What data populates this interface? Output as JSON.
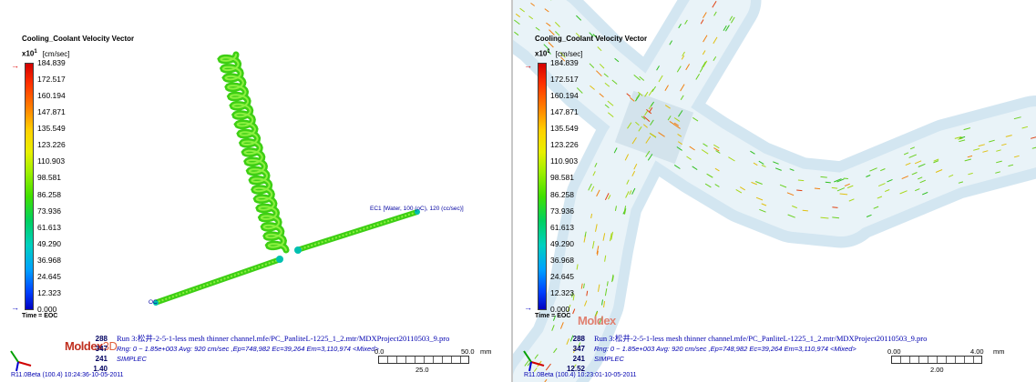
{
  "left": {
    "legend": {
      "title": "Cooling_Coolant Velocity Vector",
      "scale_prefix": "x10",
      "scale_exp": "1",
      "unit": "[cm/sec]",
      "ticks": [
        "184.839",
        "172.517",
        "160.194",
        "147.871",
        "135.549",
        "123.226",
        "110.903",
        "98.581",
        "86.258",
        "73.936",
        "61.613",
        "49.290",
        "36.968",
        "24.645",
        "12.323",
        "0.000"
      ],
      "time": "Time = EOC"
    },
    "inlet_label": "EC1 [Water, 100 (oC), 120 (cc/sec)]",
    "outlet_label": "OC",
    "brand": "Moldex",
    "brand_suffix": "3D",
    "info": {
      "rows": [
        {
          "k": "288",
          "v": "Run 3:松井-2-5-1-less mesh thinner channel.mfe/PC_PanliteL-1225_1_2.mtr/MDXProject20110503_9.pro"
        },
        {
          "k": "347",
          "v": "Rng: 0 ~ 1.85e+003  Avg: 920 cm/sec ,Ep=748,982 Ec=39,264 Em=3,110,974  <Mixed>"
        },
        {
          "k": "241",
          "v": "SIMPLEC"
        },
        {
          "k": "1.40",
          "v": ""
        }
      ]
    },
    "footer": "R11.0Beta (100.4) 10:24:36-10-05-2011",
    "scale": {
      "start": "0.0",
      "end": "50.0",
      "unit": "mm",
      "mid": "25.0"
    }
  },
  "right": {
    "legend": {
      "title": "Cooling_Coolant Velocity Vector",
      "scale_prefix": "x10",
      "scale_exp": "1",
      "unit": "[cm/sec]",
      "ticks": [
        "184.839",
        "172.517",
        "160.194",
        "147.871",
        "135.549",
        "123.226",
        "110.903",
        "98.581",
        "86.258",
        "73.936",
        "61.613",
        "49.290",
        "36.968",
        "24.645",
        "12.323",
        "0.000"
      ],
      "time": "Time = EOC"
    },
    "brand": "Moldex",
    "info": {
      "rows": [
        {
          "k": "288",
          "v": "Run 3:松井-2-5-1-less mesh thinner channel.mfe/PC_PanliteL-1225_1_2.mtr/MDXProject20110503_9.pro"
        },
        {
          "k": "347",
          "v": "Rng: 0 ~ 1.85e+003  Avg: 920 cm/sec ,Ep=748,982 Ec=39,264 Em=3,110,974  <Mixed>"
        },
        {
          "k": "241",
          "v": "SIMPLEC"
        },
        {
          "k": "12.52",
          "v": ""
        }
      ]
    },
    "footer": "R11.0Beta (100.4) 10:23:01-10-05-2011",
    "scale": {
      "start": "0.00",
      "end": "4.00",
      "unit": "mm",
      "mid": "2.00"
    }
  },
  "colors": {
    "brand": "#c03020",
    "info_text": "#0000b0",
    "channel": "#cfe3ee",
    "coil": "#46dd18"
  },
  "icons": [
    "axes-triad-icon",
    "max-arrow-icon",
    "min-arrow-icon"
  ]
}
